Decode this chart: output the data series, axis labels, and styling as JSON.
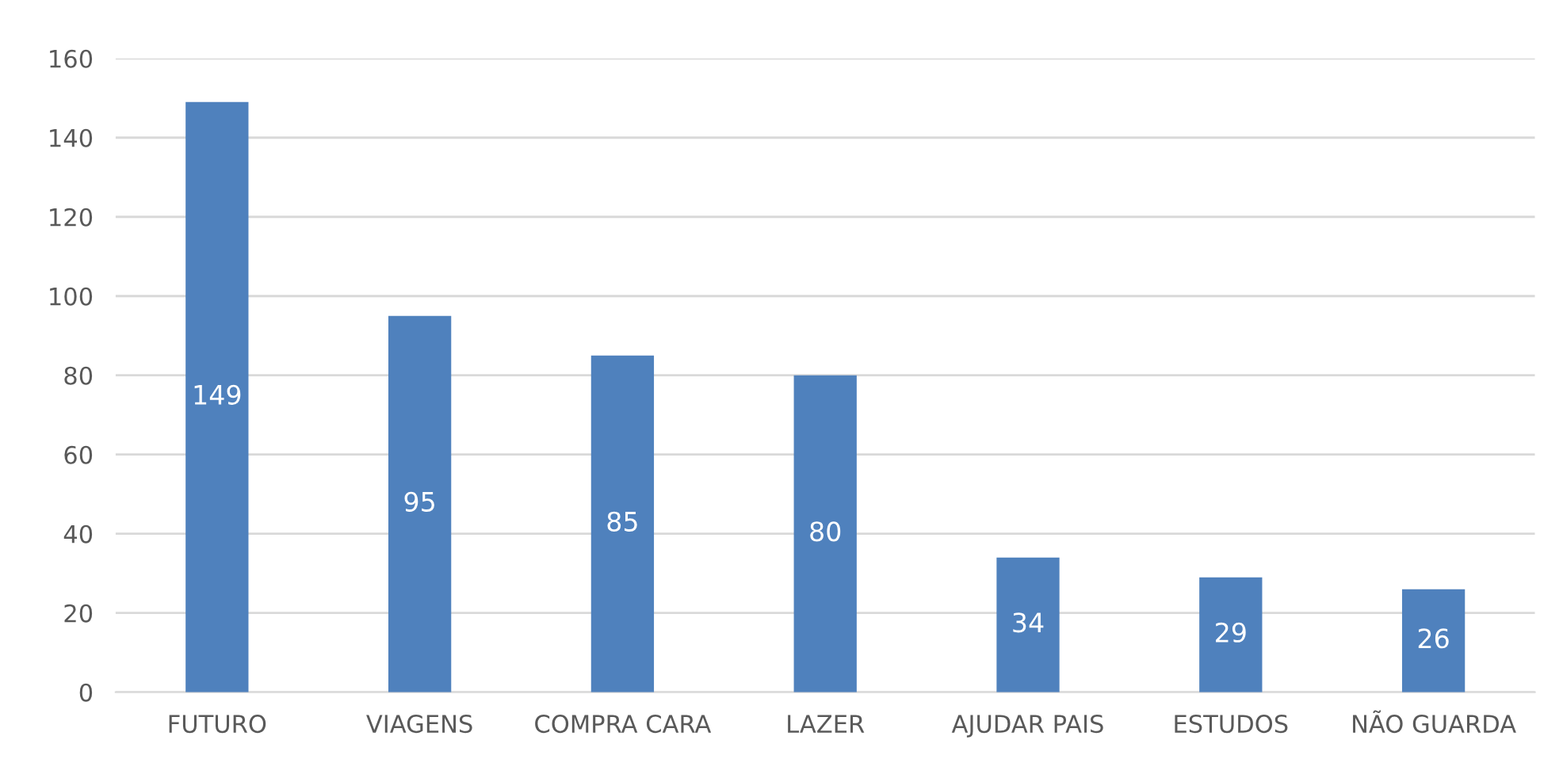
{
  "chart_data": {
    "type": "bar",
    "categories": [
      "FUTURO",
      "VIAGENS",
      "COMPRA CARA",
      "LAZER",
      "AJUDAR PAIS",
      "ESTUDOS",
      "NÃO GUARDA"
    ],
    "values": [
      149,
      95,
      85,
      80,
      34,
      29,
      26
    ],
    "color": "#4f81bd",
    "ylim": [
      0,
      160
    ],
    "yticks": [
      0,
      20,
      40,
      60,
      80,
      100,
      120,
      140,
      160
    ],
    "grid": "y",
    "data_labels": true
  }
}
